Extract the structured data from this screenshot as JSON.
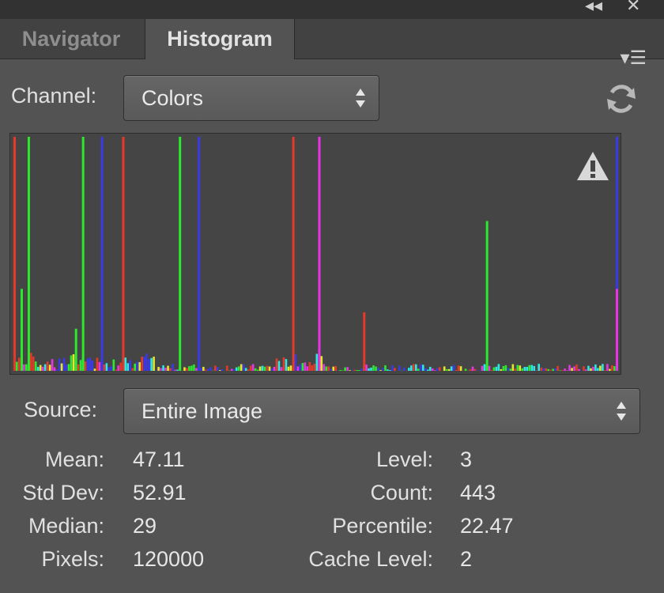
{
  "tabs": [
    {
      "label": "Navigator",
      "active": false
    },
    {
      "label": "Histogram",
      "active": true
    }
  ],
  "channel": {
    "label": "Channel:",
    "value": "Colors"
  },
  "source": {
    "label": "Source:",
    "value": "Entire Image"
  },
  "stats_left": [
    {
      "label": "Mean:",
      "value": "47.11"
    },
    {
      "label": "Std Dev:",
      "value": "52.91"
    },
    {
      "label": "Median:",
      "value": "29"
    },
    {
      "label": "Pixels:",
      "value": "120000"
    }
  ],
  "stats_right": [
    {
      "label": "Level:",
      "value": "3"
    },
    {
      "label": "Count:",
      "value": "443"
    },
    {
      "label": "Percentile:",
      "value": "22.47"
    },
    {
      "label": "Cache Level:",
      "value": "2"
    }
  ],
  "colors": {
    "panel_bg": "#535353",
    "histogram_bg": "#454545",
    "red": "#e53a2a",
    "green": "#2ee82e",
    "blue": "#3a3ae6",
    "magenta": "#e535e5",
    "cyan": "#2ee6e6",
    "yellow": "#e6e62e"
  },
  "icons": {
    "collapse": "double-chevron-left-icon",
    "close": "close-icon",
    "panel_menu": "panel-menu-icon",
    "refresh": "refresh-icon",
    "warning": "warning-icon"
  },
  "chart_data": {
    "type": "area",
    "title": "",
    "xlabel": "",
    "ylabel": "",
    "xlim": [
      0,
      255
    ],
    "ylim": [
      0,
      1
    ],
    "series": [
      {
        "name": "",
        "color": "#e53a2a",
        "spikes": [
          [
            0,
            1.0
          ],
          [
            46,
            1.0
          ],
          [
            118,
            1.0
          ],
          [
            148,
            0.25
          ],
          [
            255,
            0.35
          ]
        ]
      },
      {
        "name": "",
        "color": "#2ee82e",
        "spikes": [
          [
            6,
            1.0
          ],
          [
            29,
            1.0
          ],
          [
            70,
            1.0
          ],
          [
            200,
            0.64
          ],
          [
            3,
            0.35
          ],
          [
            26,
            0.18
          ]
        ]
      },
      {
        "name": "",
        "color": "#3a3ae6",
        "spikes": [
          [
            37,
            1.0
          ],
          [
            78,
            1.0
          ],
          [
            255,
            1.0
          ]
        ]
      },
      {
        "name": "",
        "color": "#e535e5",
        "spikes": [
          [
            129,
            1.0
          ],
          [
            255,
            0.35
          ]
        ]
      }
    ]
  }
}
